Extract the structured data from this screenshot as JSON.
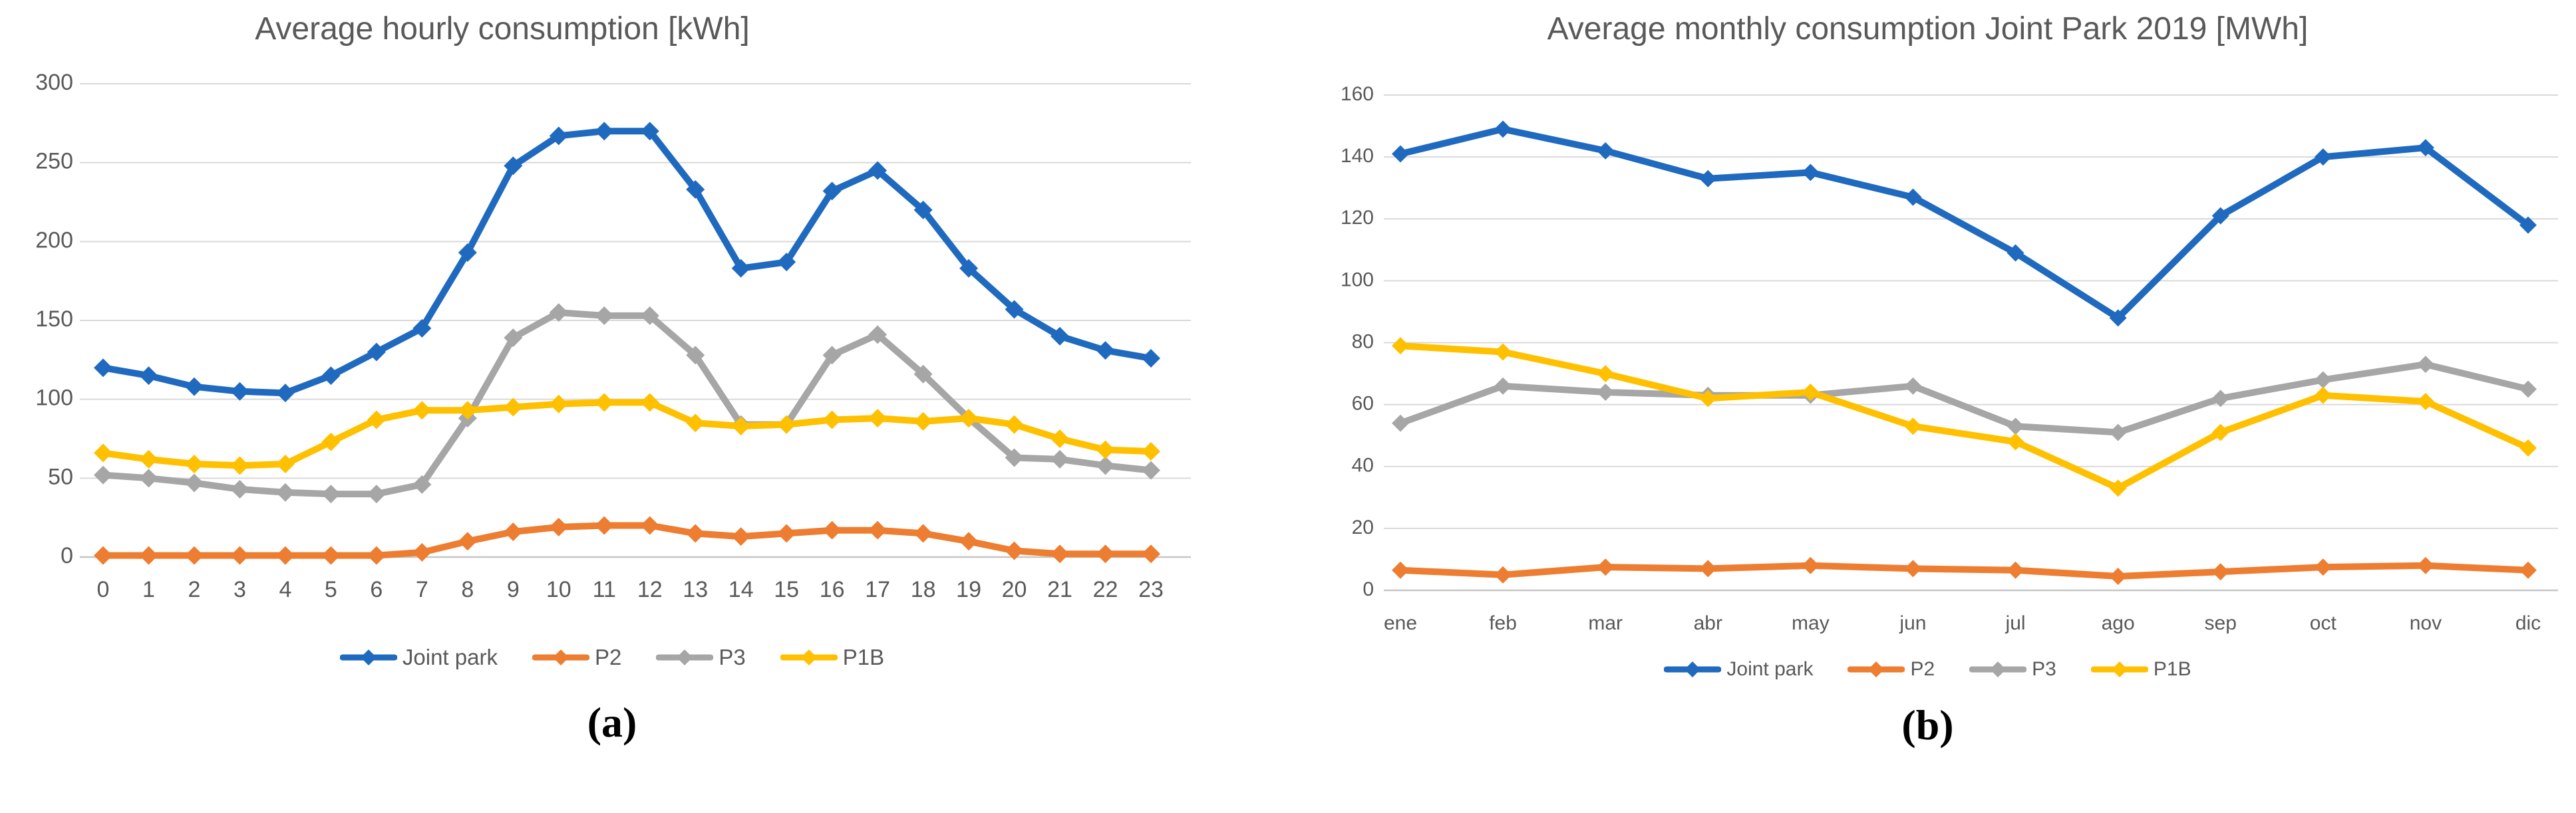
{
  "chart_data": [
    {
      "id": "hourly",
      "type": "line",
      "title": "Average hourly consumption [kWh]",
      "caption": "(a)",
      "xlabel": "",
      "ylabel": "",
      "ylim": [
        0,
        300
      ],
      "yticks": [
        0,
        50,
        100,
        150,
        200,
        250,
        300
      ],
      "grid": true,
      "legend_position": "bottom",
      "categories": [
        "0",
        "1",
        "2",
        "3",
        "4",
        "5",
        "6",
        "7",
        "8",
        "9",
        "10",
        "11",
        "12",
        "13",
        "14",
        "15",
        "16",
        "17",
        "18",
        "19",
        "20",
        "21",
        "22",
        "23"
      ],
      "series": [
        {
          "name": "Joint park",
          "color": "#1F6ABF",
          "values": [
            120,
            115,
            108,
            105,
            104,
            115,
            130,
            145,
            193,
            248,
            267,
            270,
            270,
            233,
            183,
            187,
            232,
            245,
            220,
            183,
            157,
            140,
            131,
            126
          ]
        },
        {
          "name": "P2",
          "color": "#ED7D31",
          "values": [
            1,
            1,
            1,
            1,
            1,
            1,
            1,
            3,
            10,
            16,
            19,
            20,
            20,
            15,
            13,
            15,
            17,
            17,
            15,
            10,
            4,
            2,
            2,
            2
          ]
        },
        {
          "name": "P3",
          "color": "#A6A6A6",
          "values": [
            52,
            50,
            47,
            43,
            41,
            40,
            40,
            46,
            88,
            139,
            155,
            153,
            153,
            128,
            84,
            84,
            128,
            141,
            116,
            88,
            63,
            62,
            58,
            55
          ]
        },
        {
          "name": "P1B",
          "color": "#FFC000",
          "values": [
            66,
            62,
            59,
            58,
            59,
            73,
            87,
            93,
            93,
            95,
            97,
            98,
            98,
            85,
            83,
            84,
            87,
            88,
            86,
            88,
            84,
            75,
            68,
            67
          ]
        }
      ]
    },
    {
      "id": "monthly",
      "type": "line",
      "title": "Average monthly consumption Joint Park 2019 [MWh]",
      "caption": "(b)",
      "xlabel": "",
      "ylabel": "",
      "ylim": [
        0,
        160
      ],
      "yticks": [
        0,
        20,
        40,
        60,
        80,
        100,
        120,
        140,
        160
      ],
      "grid": true,
      "legend_position": "bottom",
      "categories": [
        "ene",
        "feb",
        "mar",
        "abr",
        "may",
        "jun",
        "jul",
        "ago",
        "sep",
        "oct",
        "nov",
        "dic"
      ],
      "series": [
        {
          "name": "Joint park",
          "color": "#1F6ABF",
          "values": [
            141,
            149,
            142,
            133,
            135,
            127,
            109,
            88,
            121,
            140,
            143,
            118
          ]
        },
        {
          "name": "P2",
          "color": "#ED7D31",
          "values": [
            6.5,
            5,
            7.5,
            7,
            8,
            7,
            6.5,
            4.5,
            6,
            7.5,
            8,
            6.5
          ]
        },
        {
          "name": "P3",
          "color": "#A6A6A6",
          "values": [
            54,
            66,
            64,
            63,
            63,
            66,
            53,
            51,
            62,
            68,
            73,
            65
          ]
        },
        {
          "name": "P1B",
          "color": "#FFC000",
          "values": [
            79,
            77,
            70,
            62,
            64,
            53,
            48,
            33,
            51,
            63,
            61,
            46
          ]
        }
      ]
    }
  ],
  "style": {
    "gridline_color": "#D9D9D9",
    "axis_line_color": "#C6C6C6",
    "text_color": "#595959"
  }
}
